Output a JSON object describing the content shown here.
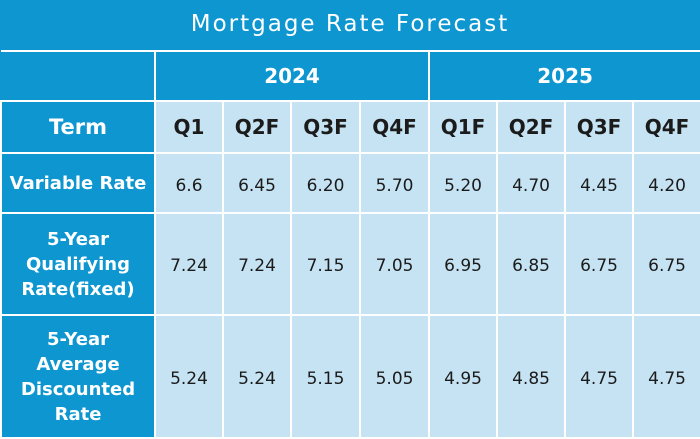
{
  "title": "Mortgage Rate Forecast",
  "years": [
    "2024",
    "2025"
  ],
  "term_header": "Term",
  "quarters": [
    "Q1",
    "Q2F",
    "Q3F",
    "Q4F",
    "Q1F",
    "Q2F",
    "Q3F",
    "Q4F"
  ],
  "rows": [
    {
      "label": "Variable Rate",
      "values": [
        "6.6",
        "6.45",
        "6.20",
        "5.70",
        "5.20",
        "4.70",
        "4.45",
        "4.20"
      ]
    },
    {
      "label": "5-Year Qualifying Rate(fixed)",
      "values": [
        "7.24",
        "7.24",
        "7.15",
        "7.05",
        "6.95",
        "6.85",
        "6.75",
        "6.75"
      ]
    },
    {
      "label": "5-Year Average Discounted Rate",
      "values": [
        "5.24",
        "5.24",
        "5.15",
        "5.05",
        "4.95",
        "4.85",
        "4.75",
        "4.75"
      ]
    }
  ],
  "colors": {
    "header_blue": "#0d96cf",
    "cell_light": "#c6e3f3",
    "text_dark": "#1b1b1b"
  }
}
